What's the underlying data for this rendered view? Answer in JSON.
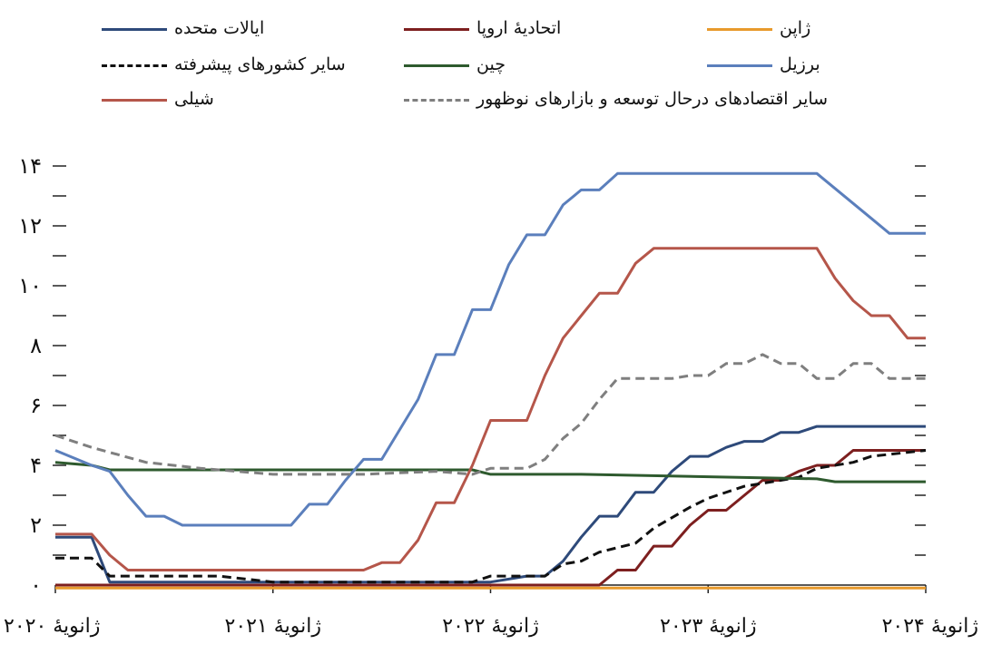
{
  "chart_data": {
    "type": "line",
    "title": "",
    "xlabel": "",
    "ylabel": "",
    "ylim": [
      0,
      14
    ],
    "xlim": [
      "2020-01",
      "2024-01"
    ],
    "y_ticks": [
      0,
      2,
      4,
      6,
      8,
      10,
      12,
      14
    ],
    "y_tick_labels": [
      "۰",
      "۲",
      "۴",
      "۶",
      "۸",
      "۱۰",
      "۱۲",
      "۱۴"
    ],
    "x_ticks": [
      "2020-01",
      "2021-01",
      "2022-01",
      "2023-01",
      "2024-01"
    ],
    "x_tick_labels": [
      "ژانویهٔ ۲۰۲۰",
      "ژانویهٔ ۲۰۲۱",
      "ژانویهٔ ۲۰۲۲",
      "ژانویهٔ ۲۰۲۳",
      "ژانویهٔ ۲۰۲۴"
    ],
    "grid": false,
    "legend_position": "top",
    "series": [
      {
        "name": "ایالات متحده",
        "color": "#2e4a7a",
        "dash": "solid",
        "points": [
          [
            "2020-01",
            1.6
          ],
          [
            "2020-03",
            1.6
          ],
          [
            "2020-04",
            0.1
          ],
          [
            "2022-01",
            0.1
          ],
          [
            "2022-03",
            0.3
          ],
          [
            "2022-04",
            0.3
          ],
          [
            "2022-05",
            0.8
          ],
          [
            "2022-06",
            1.6
          ],
          [
            "2022-07",
            2.3
          ],
          [
            "2022-08",
            2.3
          ],
          [
            "2022-09",
            3.1
          ],
          [
            "2022-10",
            3.1
          ],
          [
            "2022-11",
            3.8
          ],
          [
            "2022-12",
            4.3
          ],
          [
            "2023-01",
            4.3
          ],
          [
            "2023-02",
            4.6
          ],
          [
            "2023-03",
            4.8
          ],
          [
            "2023-04",
            4.8
          ],
          [
            "2023-05",
            5.1
          ],
          [
            "2023-06",
            5.1
          ],
          [
            "2023-07",
            5.3
          ],
          [
            "2024-01",
            5.3
          ]
        ]
      },
      {
        "name": "اتحادیهٔ اروپا",
        "color": "#7d1f1f",
        "dash": "solid",
        "points": [
          [
            "2020-01",
            0
          ],
          [
            "2022-07",
            0
          ],
          [
            "2022-08",
            0.5
          ],
          [
            "2022-09",
            0.5
          ],
          [
            "2022-10",
            1.3
          ],
          [
            "2022-11",
            1.3
          ],
          [
            "2022-12",
            2.0
          ],
          [
            "2023-01",
            2.5
          ],
          [
            "2023-02",
            2.5
          ],
          [
            "2023-03",
            3.0
          ],
          [
            "2023-04",
            3.5
          ],
          [
            "2023-05",
            3.5
          ],
          [
            "2023-06",
            3.8
          ],
          [
            "2023-07",
            4.0
          ],
          [
            "2023-08",
            4.0
          ],
          [
            "2023-09",
            4.5
          ],
          [
            "2024-01",
            4.5
          ]
        ]
      },
      {
        "name": "ژاپن",
        "color": "#e89a2c",
        "dash": "solid",
        "points": [
          [
            "2020-01",
            -0.1
          ],
          [
            "2024-01",
            -0.1
          ]
        ]
      },
      {
        "name": "سایر کشورهای پیشرفته",
        "color": "#111111",
        "dash": "dash",
        "points": [
          [
            "2020-01",
            0.9
          ],
          [
            "2020-03",
            0.9
          ],
          [
            "2020-04",
            0.3
          ],
          [
            "2020-10",
            0.3
          ],
          [
            "2021-01",
            0.1
          ],
          [
            "2021-12",
            0.1
          ],
          [
            "2022-01",
            0.3
          ],
          [
            "2022-04",
            0.3
          ],
          [
            "2022-05",
            0.7
          ],
          [
            "2022-06",
            0.8
          ],
          [
            "2022-07",
            1.1
          ],
          [
            "2022-09",
            1.4
          ],
          [
            "2022-10",
            1.9
          ],
          [
            "2022-12",
            2.6
          ],
          [
            "2023-01",
            2.9
          ],
          [
            "2023-03",
            3.3
          ],
          [
            "2023-06",
            3.6
          ],
          [
            "2023-07",
            3.9
          ],
          [
            "2023-09",
            4.1
          ],
          [
            "2023-10",
            4.3
          ],
          [
            "2024-01",
            4.5
          ]
        ]
      },
      {
        "name": "چین",
        "color": "#2e5a2e",
        "dash": "solid",
        "points": [
          [
            "2020-01",
            4.1
          ],
          [
            "2020-03",
            4.0
          ],
          [
            "2020-04",
            3.85
          ],
          [
            "2021-12",
            3.85
          ],
          [
            "2022-01",
            3.7
          ],
          [
            "2022-06",
            3.7
          ],
          [
            "2023-07",
            3.55
          ],
          [
            "2023-08",
            3.45
          ],
          [
            "2024-01",
            3.45
          ]
        ]
      },
      {
        "name": "برزیل",
        "color": "#5b7fbc",
        "dash": "solid",
        "points": [
          [
            "2020-01",
            4.5
          ],
          [
            "2020-03",
            4.0
          ],
          [
            "2020-04",
            3.8
          ],
          [
            "2020-05",
            3.0
          ],
          [
            "2020-06",
            2.3
          ],
          [
            "2020-07",
            2.3
          ],
          [
            "2020-08",
            2.0
          ],
          [
            "2020-12",
            2.0
          ],
          [
            "2021-01",
            2.0
          ],
          [
            "2021-02",
            2.0
          ],
          [
            "2021-03",
            2.7
          ],
          [
            "2021-04",
            2.7
          ],
          [
            "2021-05",
            3.5
          ],
          [
            "2021-06",
            4.2
          ],
          [
            "2021-07",
            4.2
          ],
          [
            "2021-08",
            5.2
          ],
          [
            "2021-09",
            6.2
          ],
          [
            "2021-10",
            7.7
          ],
          [
            "2021-11",
            7.7
          ],
          [
            "2021-12",
            9.2
          ],
          [
            "2022-01",
            9.2
          ],
          [
            "2022-02",
            10.7
          ],
          [
            "2022-03",
            11.7
          ],
          [
            "2022-04",
            11.7
          ],
          [
            "2022-05",
            12.7
          ],
          [
            "2022-06",
            13.2
          ],
          [
            "2022-07",
            13.2
          ],
          [
            "2022-08",
            13.75
          ],
          [
            "2023-06",
            13.75
          ],
          [
            "2023-07",
            13.75
          ],
          [
            "2023-08",
            13.25
          ],
          [
            "2023-09",
            12.75
          ],
          [
            "2023-10",
            12.25
          ],
          [
            "2023-11",
            11.75
          ],
          [
            "2024-01",
            11.75
          ]
        ]
      },
      {
        "name": "شیلی",
        "color": "#b5564a",
        "dash": "solid",
        "points": [
          [
            "2020-01",
            1.7
          ],
          [
            "2020-03",
            1.7
          ],
          [
            "2020-04",
            1.0
          ],
          [
            "2020-05",
            0.5
          ],
          [
            "2021-06",
            0.5
          ],
          [
            "2021-07",
            0.75
          ],
          [
            "2021-08",
            0.75
          ],
          [
            "2021-09",
            1.5
          ],
          [
            "2021-10",
            2.75
          ],
          [
            "2021-11",
            2.75
          ],
          [
            "2021-12",
            4.0
          ],
          [
            "2022-01",
            5.5
          ],
          [
            "2022-02",
            5.5
          ],
          [
            "2022-03",
            5.5
          ],
          [
            "2022-04",
            7.0
          ],
          [
            "2022-05",
            8.25
          ],
          [
            "2022-06",
            9.0
          ],
          [
            "2022-07",
            9.75
          ],
          [
            "2022-08",
            9.75
          ],
          [
            "2022-09",
            10.75
          ],
          [
            "2022-10",
            11.25
          ],
          [
            "2023-07",
            11.25
          ],
          [
            "2023-08",
            10.25
          ],
          [
            "2023-09",
            9.5
          ],
          [
            "2023-10",
            9.0
          ],
          [
            "2023-11",
            9.0
          ],
          [
            "2023-12",
            8.25
          ],
          [
            "2024-01",
            8.25
          ]
        ]
      },
      {
        "name": "سایر اقتصادهای درحال توسعه و بازارهای نوظهور",
        "color": "#7f7f7f",
        "dash": "dash",
        "points": [
          [
            "2020-01",
            5.0
          ],
          [
            "2020-03",
            4.6
          ],
          [
            "2020-06",
            4.1
          ],
          [
            "2020-09",
            3.9
          ],
          [
            "2021-01",
            3.7
          ],
          [
            "2021-06",
            3.7
          ],
          [
            "2021-10",
            3.8
          ],
          [
            "2021-12",
            3.7
          ],
          [
            "2022-01",
            3.9
          ],
          [
            "2022-03",
            3.9
          ],
          [
            "2022-04",
            4.2
          ],
          [
            "2022-05",
            4.9
          ],
          [
            "2022-06",
            5.4
          ],
          [
            "2022-07",
            6.2
          ],
          [
            "2022-08",
            6.9
          ],
          [
            "2022-11",
            6.9
          ],
          [
            "2022-12",
            7.0
          ],
          [
            "2023-01",
            7.0
          ],
          [
            "2023-02",
            7.4
          ],
          [
            "2023-03",
            7.4
          ],
          [
            "2023-04",
            7.7
          ],
          [
            "2023-05",
            7.4
          ],
          [
            "2023-06",
            7.4
          ],
          [
            "2023-07",
            6.9
          ],
          [
            "2023-08",
            6.9
          ],
          [
            "2023-09",
            7.4
          ],
          [
            "2023-10",
            7.4
          ],
          [
            "2023-11",
            6.9
          ],
          [
            "2024-01",
            6.9
          ]
        ]
      }
    ]
  }
}
